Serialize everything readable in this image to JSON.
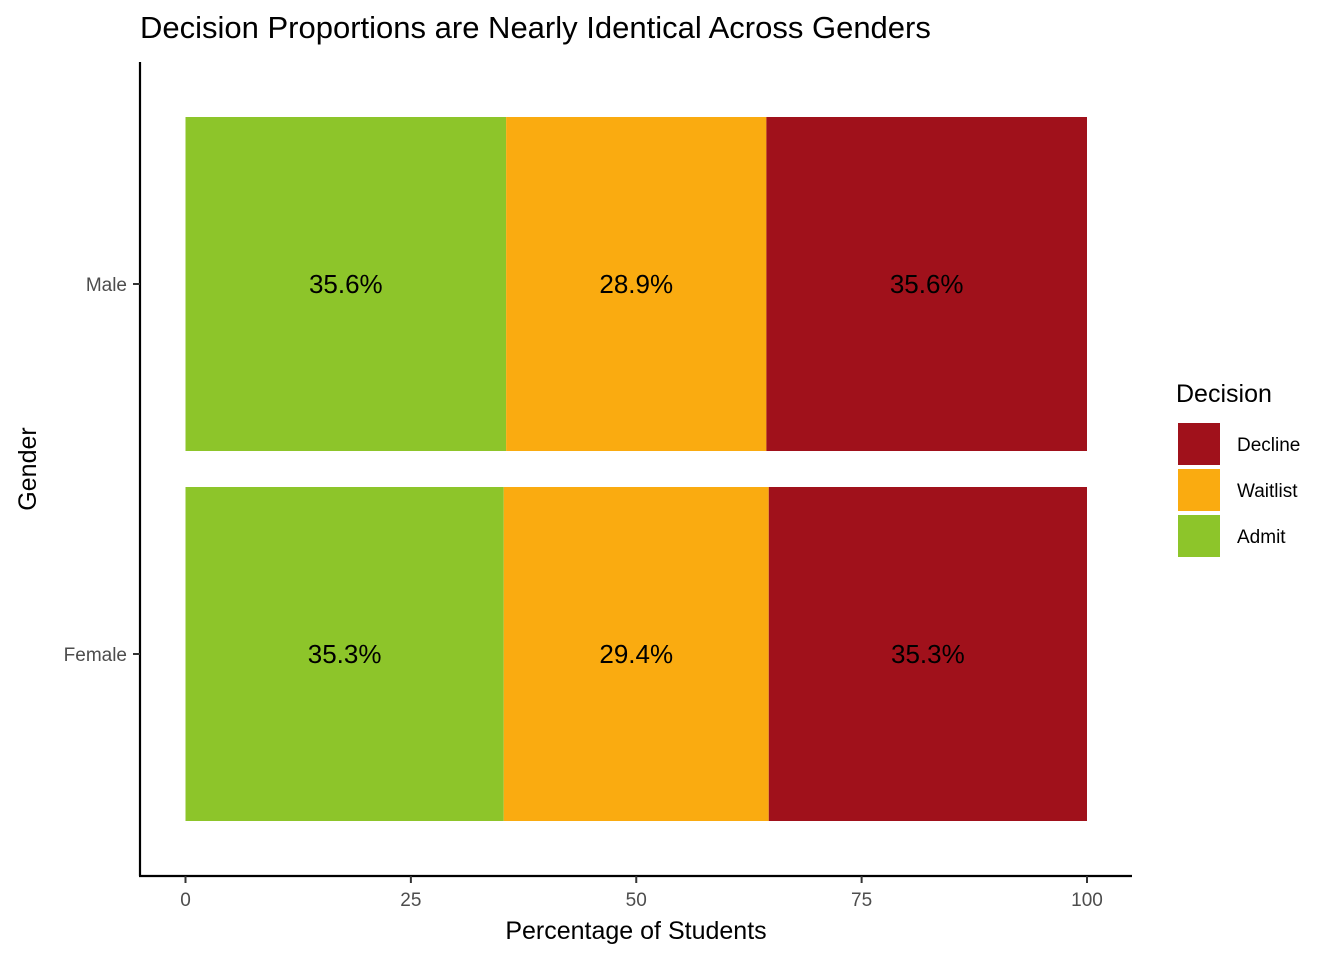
{
  "chart_data": {
    "type": "bar",
    "orientation": "horizontal",
    "stacked": true,
    "title": "Decision Proportions are Nearly Identical Across Genders",
    "xlabel": "Percentage of Students",
    "ylabel": "Gender",
    "xlim": [
      0,
      100
    ],
    "x_ticks": [
      "0",
      "25",
      "50",
      "75",
      "100"
    ],
    "categories": [
      "Male",
      "Female"
    ],
    "series": [
      {
        "name": "Admit",
        "color": "#8dc52a",
        "values": [
          35.6,
          35.3
        ],
        "labels": [
          "35.6%",
          "35.3%"
        ]
      },
      {
        "name": "Waitlist",
        "color": "#faab10",
        "values": [
          28.9,
          29.4
        ],
        "labels": [
          "28.9%",
          "29.4%"
        ]
      },
      {
        "name": "Decline",
        "color": "#a0111b",
        "values": [
          35.6,
          35.3
        ],
        "labels": [
          "35.6%",
          "35.3%"
        ]
      }
    ],
    "legend": {
      "title": "Decision",
      "placement": "right",
      "order": [
        "Decline",
        "Waitlist",
        "Admit"
      ]
    },
    "grid": false
  }
}
